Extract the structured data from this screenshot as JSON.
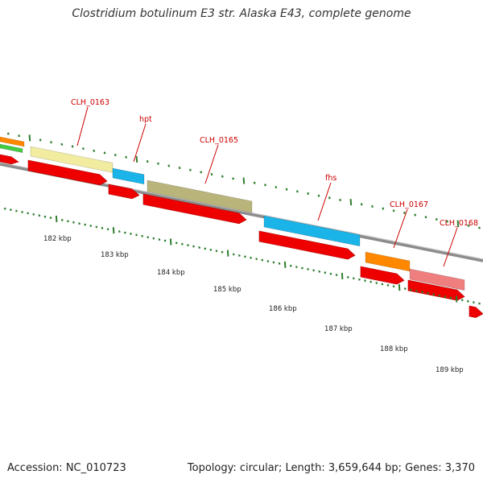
{
  "title": "Clostridium botulinum E3 str. Alaska E43, complete genome",
  "footer": {
    "accession": "Accession: NC_010723",
    "topology": "Topology: circular; Length: 3,659,644 bp; Genes: 3,370"
  },
  "colors": {
    "backbone": "#8c8c8c",
    "arrow_red": "#ee0000",
    "label_red": "#cc0000",
    "tick_green": "#2f7f2f",
    "feature_yellow": "#f2eca0",
    "feature_cyan": "#1ab4e8",
    "feature_olive": "#b9b57a",
    "feature_orange": "#ff8800",
    "feature_pink": "#ef7f7f",
    "feature_green": "#44cc44"
  },
  "gene_labels": [
    "CLH_0163",
    "hpt",
    "CLH_0165",
    "fhs",
    "CLH_0167",
    "CLH_0168"
  ],
  "kbp_labels": [
    "182 kbp",
    "183 kbp",
    "184 kbp",
    "185 kbp",
    "186 kbp",
    "187 kbp",
    "188 kbp",
    "189 kbp"
  ]
}
